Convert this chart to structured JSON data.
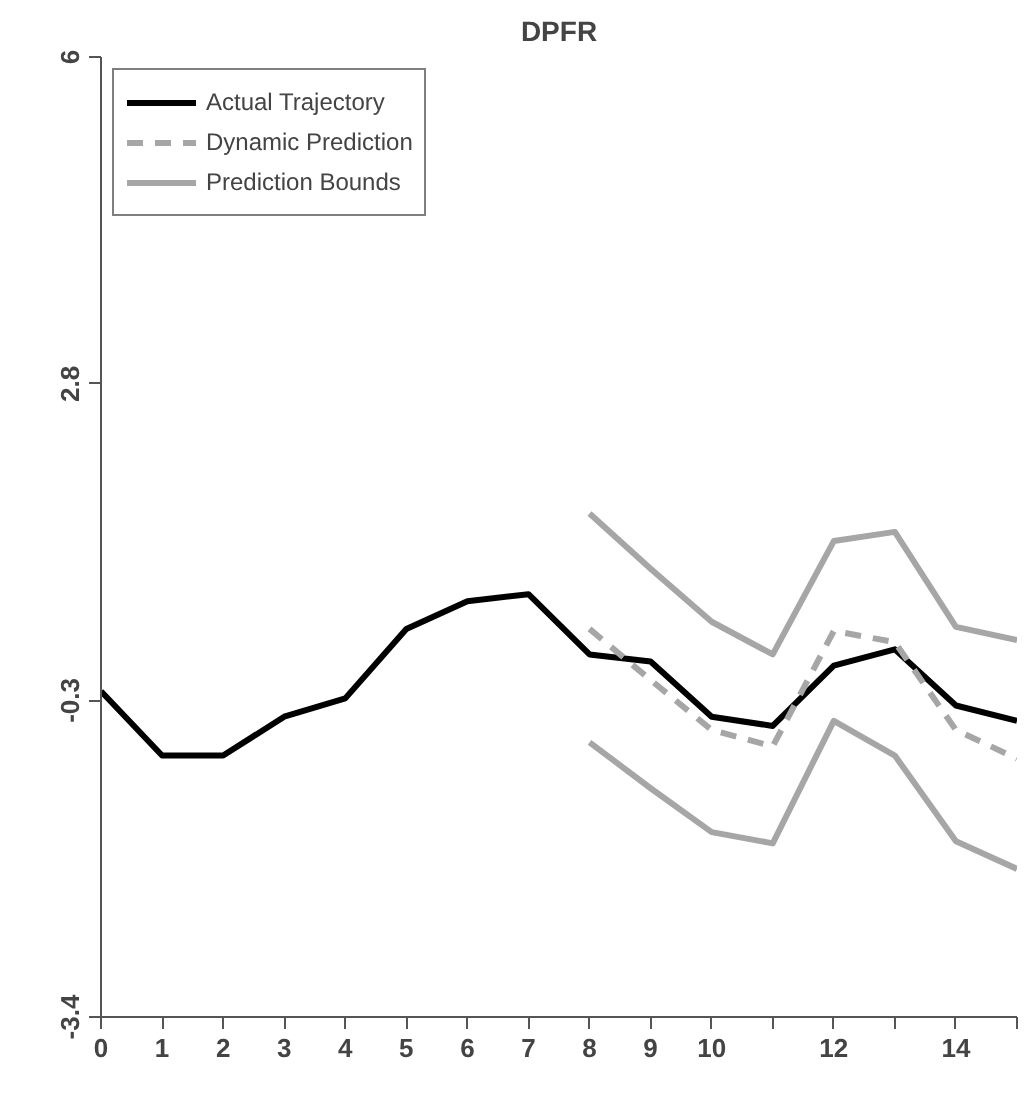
{
  "chart_data": {
    "type": "line",
    "title": "DPFR",
    "x": [
      0,
      1,
      2,
      3,
      4,
      5,
      6,
      7,
      8,
      9,
      10,
      11,
      12,
      13,
      14,
      15
    ],
    "series": [
      {
        "name": "Actual Trajectory",
        "color": "#000000",
        "line_style": "solid",
        "values": [
          -0.21,
          -0.84,
          -0.84,
          -0.46,
          -0.28,
          0.4,
          0.67,
          0.74,
          0.15,
          0.08,
          -0.46,
          -0.55,
          0.04,
          0.2,
          -0.35,
          -0.5
        ]
      },
      {
        "name": "Dynamic Prediction",
        "color": "#a6a6a6",
        "line_style": "dashed",
        "values": [
          null,
          null,
          null,
          null,
          null,
          null,
          null,
          null,
          0.4,
          -0.1,
          -0.59,
          -0.75,
          0.38,
          0.27,
          -0.59,
          -0.87
        ]
      },
      {
        "name": "Prediction Bounds",
        "color": "#a6a6a6",
        "line_style": "solid",
        "values": [
          null,
          null,
          null,
          null,
          null,
          null,
          null,
          null,
          1.53,
          0.99,
          0.47,
          0.15,
          1.26,
          1.35,
          0.42,
          0.29
        ]
      },
      {
        "color": "#a6a6a6",
        "line_style": "solid",
        "values": [
          null,
          null,
          null,
          null,
          null,
          null,
          null,
          null,
          -0.71,
          -1.16,
          -1.59,
          -1.7,
          -0.5,
          -0.84,
          -1.68,
          -1.95
        ]
      }
    ],
    "xlim": [
      0,
      15
    ],
    "ylim": [
      -3.4,
      6
    ],
    "xticks": [
      0,
      1,
      2,
      3,
      4,
      5,
      6,
      7,
      8,
      9,
      10,
      {
        "value": 11,
        "label": null
      },
      12,
      {
        "value": 13,
        "label": null
      },
      14,
      {
        "value": 15,
        "label": null
      }
    ],
    "yticks": [
      -3.4,
      -0.3,
      2.8,
      6
    ],
    "grid": false,
    "legend": "top left"
  }
}
